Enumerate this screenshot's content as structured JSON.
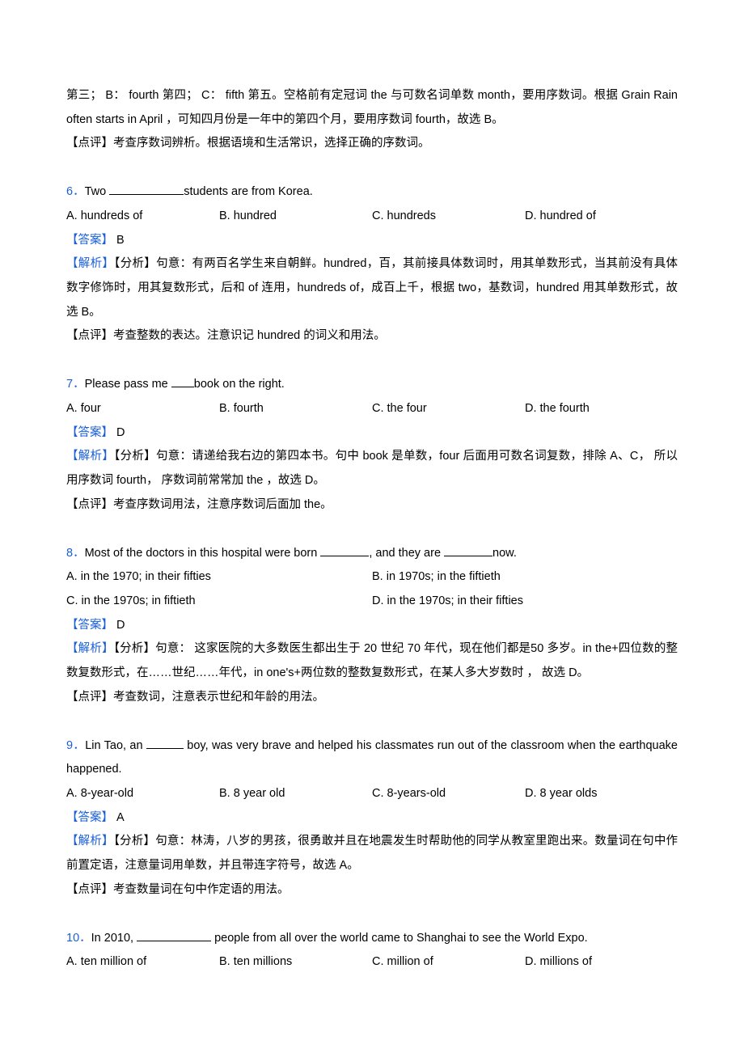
{
  "intro": {
    "line1_pre": "第三；  B：  fourth 第四；  C：  fifth 第五。空格前有定冠词 the 与可数名词单数 month，要用序数词。根据  Grain Rain often starts in April ，可知四月份是一年中的第四个月，要用序数词 fourth，故选 B。",
    "comment": "【点评】考查序数词辨析。根据语境和生活常识，选择正确的序数词。"
  },
  "q6": {
    "num": "6．",
    "stem_pre": "Two ",
    "stem_post": "students are from Korea.",
    "optA": "A. hundreds of",
    "optB": "B. hundred",
    "optC": "C. hundreds",
    "optD": "D. hundred of",
    "answer_label": "【答案】",
    "answer_val": " B",
    "analysis_label": "【解析】",
    "analysis_body": "【分析】句意：有两百名学生来自朝鲜。hundred，百，其前接具体数词时，用其单数形式，当其前没有具体数字修饰时，用其复数形式，后和 of 连用，hundreds of，成百上千，根据 two，基数词，hundred 用其单数形式，故选 B。",
    "comment": "【点评】考查整数的表达。注意识记 hundred 的词义和用法。"
  },
  "q7": {
    "num": "7．",
    "stem_pre": "Please pass me ",
    "stem_post": "book on the right.",
    "optA": "A. four",
    "optB": "B. fourth",
    "optC": "C. the four",
    "optD": "D. the fourth",
    "answer_label": "【答案】",
    "answer_val": " D",
    "analysis_label": "【解析】",
    "analysis_body": "【分析】句意：请递给我右边的第四本书。句中 book 是单数，four 后面用可数名词复数，排除 A、C， 所以用序数词 fourth， 序数词前常常加 the ，故选 D。",
    "comment": "【点评】考查序数词用法，注意序数词后面加 the。"
  },
  "q8": {
    "num": "8．",
    "stem_pre": "Most of the doctors in this hospital were born ",
    "stem_mid": ", and they are ",
    "stem_post": "now.",
    "optA": "A. in the 1970; in their fifties",
    "optB": "B. in 1970s; in the fiftieth",
    "optC": "C. in the 1970s; in fiftieth",
    "optD": "D. in the 1970s; in their fifties",
    "answer_label": "【答案】",
    "answer_val": " D",
    "analysis_label": "【解析】",
    "analysis_body": "【分析】句意： 这家医院的大多数医生都出生于 20 世纪 70 年代，现在他们都是50 多岁。in the+四位数的整数复数形式，在……世纪……年代，in one's+两位数的整数复数形式，在某人多大岁数时  ， 故选 D。",
    "comment": "【点评】考查数词，注意表示世纪和年龄的用法。"
  },
  "q9": {
    "num": "9．",
    "stem_pre": "Lin Tao, an ",
    "stem_post": " boy, was very brave and helped his classmates run out of the classroom when the earthquake happened.",
    "optA": "A. 8-year-old",
    "optB": "B. 8 year old",
    "optC": "C. 8-years-old",
    "optD": "D. 8 year olds",
    "answer_label": "【答案】",
    "answer_val": " A",
    "analysis_label": "【解析】",
    "analysis_body": "【分析】句意：林涛，八岁的男孩，很勇敢并且在地震发生时帮助他的同学从教室里跑出来。数量词在句中作前置定语，注意量词用单数，并且带连字符号，故选 A。",
    "comment": "【点评】考查数量词在句中作定语的用法。"
  },
  "q10": {
    "num": "10．",
    "stem_pre": "In 2010, ",
    "stem_post": " people from all over the world came to Shanghai to see the World Expo.",
    "optA": "A. ten million of",
    "optB": "B. ten millions",
    "optC": "C. million of",
    "optD": "D. millions of"
  }
}
